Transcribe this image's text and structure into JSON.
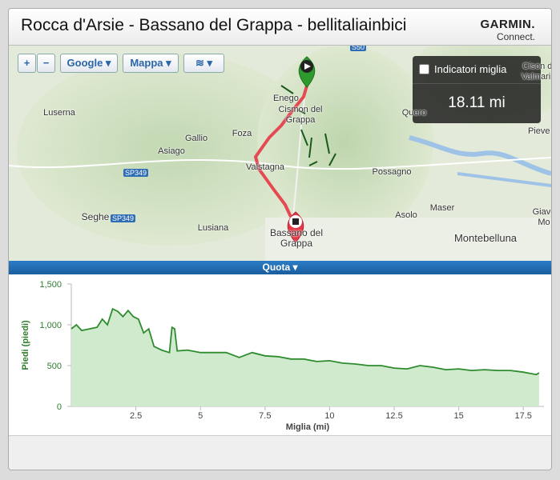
{
  "header": {
    "title": "Rocca d'Arsie - Bassano del Grappa - bellitaliainbici",
    "brand": "GARMIN.",
    "brand_sub": "Connect."
  },
  "map": {
    "zoom_in": "+",
    "zoom_out": "−",
    "provider": "Google",
    "map_type": "Mappa",
    "mile_markers": "Indicatori miglia",
    "distance": "18.11 mi",
    "places": [
      "Enego",
      "Cismon del Grappa",
      "Foza",
      "Gallio",
      "Asiago",
      "Valstagna",
      "Possagno",
      "Asolo",
      "Maser",
      "Bassano del Grappa",
      "Montebelluna",
      "Lusiana",
      "Seghe",
      "Luserna",
      "Quero",
      "Pieve c",
      "Cison di Valmarin",
      "Giave Mo"
    ],
    "roads": [
      "SP349",
      "SP349",
      "S50"
    ]
  },
  "profile": {
    "tab": "Quota"
  },
  "chart_data": {
    "type": "area",
    "x_label": "Miglia (mi)",
    "y_label": "Piedi (piedi)",
    "x": [
      0,
      0.2,
      0.4,
      0.7,
      1.0,
      1.2,
      1.4,
      1.6,
      1.8,
      2.0,
      2.2,
      2.4,
      2.6,
      2.8,
      3.0,
      3.2,
      3.5,
      3.8,
      3.9,
      4.0,
      4.1,
      4.5,
      5.0,
      5.5,
      6.0,
      6.5,
      7.0,
      7.5,
      8.0,
      8.5,
      9.0,
      9.5,
      10,
      10.5,
      11,
      11.5,
      12,
      12.5,
      13,
      13.5,
      14,
      14.5,
      15,
      15.5,
      16,
      16.5,
      17,
      17.5,
      18.0,
      18.11
    ],
    "series": [
      {
        "name": "Quota",
        "color": "#2e8b2e",
        "fill": "#cfeacd",
        "values": [
          950,
          1000,
          930,
          950,
          970,
          1070,
          1000,
          1195,
          1165,
          1100,
          1175,
          1100,
          1070,
          900,
          950,
          735,
          690,
          660,
          970,
          950,
          680,
          690,
          660,
          660,
          660,
          600,
          660,
          620,
          610,
          580,
          580,
          550,
          560,
          530,
          520,
          500,
          500,
          470,
          460,
          500,
          480,
          450,
          460,
          440,
          450,
          440,
          440,
          420,
          390,
          410
        ]
      }
    ],
    "xlim": [
      0,
      18.3
    ],
    "xticks": [
      2.5,
      5,
      7.5,
      10,
      12.5,
      15,
      17.5
    ],
    "ylim": [
      0,
      1500
    ],
    "yticks": [
      0,
      500,
      {
        "value": 1000,
        "label": "1,000"
      },
      {
        "value": 1500,
        "label": "1,500"
      }
    ]
  }
}
